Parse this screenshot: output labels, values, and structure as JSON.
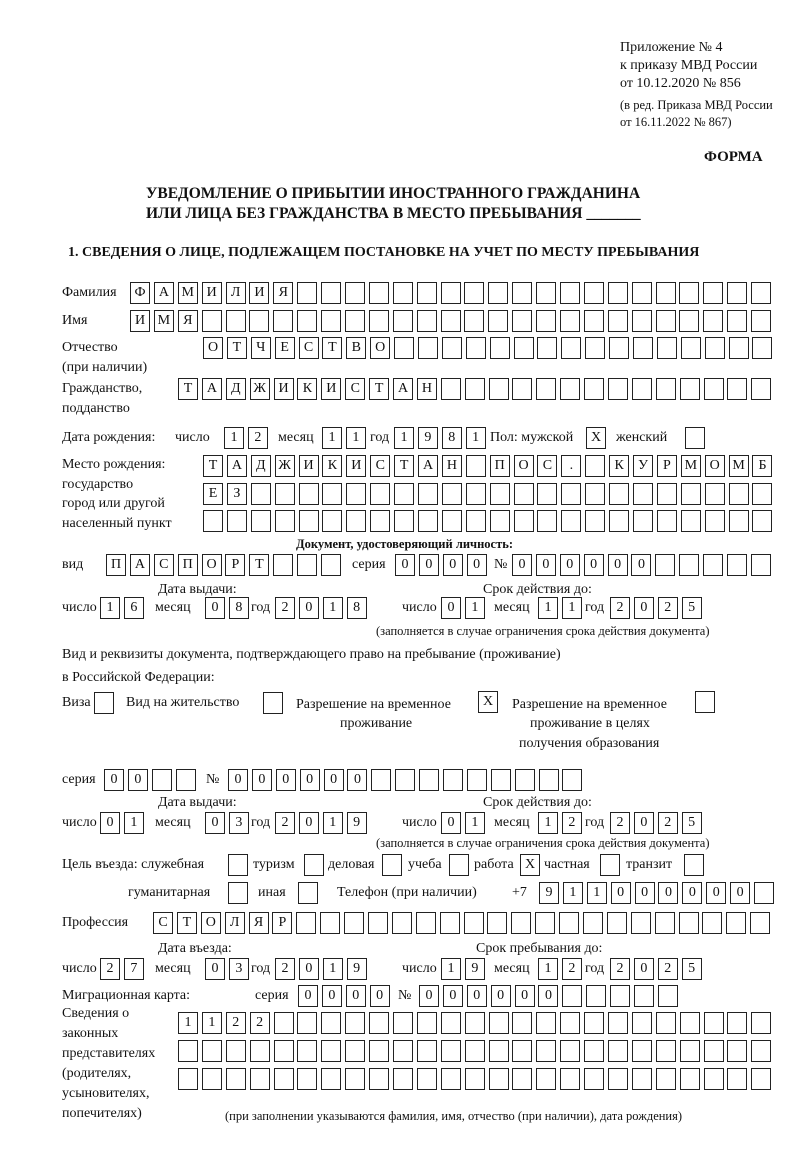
{
  "header": {
    "line1": "Приложение № 4",
    "line2": "к приказу МВД России",
    "line3": "от 10.12.2020 № 856",
    "line4": "(в ред. Приказа МВД России",
    "line5": "от 16.11.2022 № 867)",
    "forma": "ФОРМА"
  },
  "title": {
    "line1": "УВЕДОМЛЕНИЕ О ПРИБЫТИИ ИНОСТРАННОГО ГРАЖДАНИНА",
    "line2": "ИЛИ ЛИЦА БЕЗ ГРАЖДАНСТВА В МЕСТО ПРЕБЫВАНИЯ _______"
  },
  "section1": "1. СВЕДЕНИЯ О ЛИЦЕ, ПОДЛЕЖАЩЕМ ПОСТАНОВКЕ НА УЧЕТ ПО МЕСТУ ПРЕБЫВАНИЯ",
  "labels": {
    "surname": "Фамилия",
    "name": "Имя",
    "patronymic1": "Отчество",
    "patronymic2": "(при наличии)",
    "citizenship1": "Гражданство,",
    "citizenship2": "подданство",
    "birth_date": "Дата рождения:",
    "day": "число",
    "month": "месяц",
    "year": "год",
    "sex_male": "Пол: мужской",
    "sex_female": "женский",
    "birthplace1": "Место рождения:",
    "birthplace2": "государство",
    "birthplace3": "город или другой",
    "birthplace4": "населенный пункт",
    "id_doc": "Документ, удостоверяющий личность:",
    "kind": "вид",
    "series": "серия",
    "number": "№",
    "issue_date": "Дата выдачи:",
    "valid_until": "Срок действия до:",
    "validity_note": "(заполняется в случае ограничения срока действия документа)",
    "right_doc1": "Вид и реквизиты документа, подтверждающего право на пребывание (проживание)",
    "right_doc2": "в Российской Федерации:",
    "visa": "Виза",
    "residence": "Вид на жительство",
    "temp_res1": "Разрешение на временное",
    "temp_res2": "проживание",
    "temp_edu1": "Разрешение на временное",
    "temp_edu2": "проживание в целях",
    "temp_edu3": "получения образования",
    "purpose": "Цель въезда: служебная",
    "tourism": "туризм",
    "business": "деловая",
    "study": "учеба",
    "work": "работа",
    "private": "частная",
    "transit": "транзит",
    "humanitarian": "гуманитарная",
    "other": "иная",
    "phone": "Телефон (при наличии)",
    "phone_prefix": "+7",
    "profession": "Профессия",
    "entry_date": "Дата въезда:",
    "stay_until": "Срок пребывания до:",
    "migration_card": "Миграционная карта:",
    "reps1": "Сведения о",
    "reps2": "законных",
    "reps3": "представителях",
    "reps4": "(родителях,",
    "reps5": "усыновителях,",
    "reps6": "попечителях)",
    "reps_note": "(при заполнении указываются фамилия, имя, отчество (при наличии), дата рождения)"
  },
  "fields": {
    "surname": [
      "Ф",
      "А",
      "М",
      "И",
      "Л",
      "И",
      "Я",
      "",
      "",
      "",
      "",
      "",
      "",
      "",
      "",
      "",
      "",
      "",
      "",
      "",
      "",
      "",
      "",
      "",
      "",
      "",
      ""
    ],
    "name": [
      "И",
      "М",
      "Я",
      "",
      "",
      "",
      "",
      "",
      "",
      "",
      "",
      "",
      "",
      "",
      "",
      "",
      "",
      "",
      "",
      "",
      "",
      "",
      "",
      "",
      "",
      "",
      ""
    ],
    "patronymic": [
      "О",
      "Т",
      "Ч",
      "Е",
      "С",
      "Т",
      "В",
      "О",
      "",
      "",
      "",
      "",
      "",
      "",
      "",
      "",
      "",
      "",
      "",
      "",
      "",
      "",
      "",
      ""
    ],
    "citizenship": [
      "Т",
      "А",
      "Д",
      "Ж",
      "И",
      "К",
      "И",
      "С",
      "Т",
      "А",
      "Н",
      "",
      "",
      "",
      "",
      "",
      "",
      "",
      "",
      "",
      "",
      "",
      "",
      "",
      ""
    ],
    "birth_day": [
      "1",
      "2"
    ],
    "birth_month": [
      "1",
      "1"
    ],
    "birth_year": [
      "1",
      "9",
      "8",
      "1"
    ],
    "sex_male": [
      "X"
    ],
    "sex_female": [
      ""
    ],
    "birthplace_row1": [
      "Т",
      "А",
      "Д",
      "Ж",
      "И",
      "К",
      "И",
      "С",
      "Т",
      "А",
      "Н",
      "",
      "П",
      "О",
      "С",
      ".",
      "",
      "К",
      "У",
      "Р",
      "М",
      "О",
      "М",
      "Б"
    ],
    "birthplace_row2": [
      "Е",
      "З",
      "",
      "",
      "",
      "",
      "",
      "",
      "",
      "",
      "",
      "",
      "",
      "",
      "",
      "",
      "",
      "",
      "",
      "",
      "",
      "",
      "",
      ""
    ],
    "birthplace_row3": [
      "",
      "",
      "",
      "",
      "",
      "",
      "",
      "",
      "",
      "",
      "",
      "",
      "",
      "",
      "",
      "",
      "",
      "",
      "",
      "",
      "",
      "",
      "",
      ""
    ],
    "doc_kind": [
      "П",
      "А",
      "С",
      "П",
      "О",
      "Р",
      "Т",
      "",
      "",
      ""
    ],
    "doc_series": [
      "0",
      "0",
      "0",
      "0"
    ],
    "doc_number": [
      "0",
      "0",
      "0",
      "0",
      "0",
      "0",
      "",
      "",
      "",
      "",
      ""
    ],
    "doc_issue_day": [
      "1",
      "6"
    ],
    "doc_issue_month": [
      "0",
      "8"
    ],
    "doc_issue_year": [
      "2",
      "0",
      "1",
      "8"
    ],
    "doc_valid_day": [
      "0",
      "1"
    ],
    "doc_valid_month": [
      "1",
      "1"
    ],
    "doc_valid_year": [
      "2",
      "0",
      "2",
      "5"
    ],
    "visa": [
      ""
    ],
    "residence": [
      ""
    ],
    "temp_res": [
      "X"
    ],
    "temp_edu": [
      ""
    ],
    "right_series": [
      "0",
      "0",
      "",
      ""
    ],
    "right_number": [
      "0",
      "0",
      "0",
      "0",
      "0",
      "0",
      "",
      "",
      "",
      "",
      "",
      "",
      "",
      "",
      ""
    ],
    "right_issue_day": [
      "0",
      "1"
    ],
    "right_issue_month": [
      "0",
      "3"
    ],
    "right_issue_year": [
      "2",
      "0",
      "1",
      "9"
    ],
    "right_valid_day": [
      "0",
      "1"
    ],
    "right_valid_month": [
      "1",
      "2"
    ],
    "right_valid_year": [
      "2",
      "0",
      "2",
      "5"
    ],
    "p_service": [
      ""
    ],
    "p_tourism": [
      ""
    ],
    "p_business": [
      ""
    ],
    "p_study": [
      ""
    ],
    "p_work": [
      "X"
    ],
    "p_private": [
      ""
    ],
    "p_transit": [
      ""
    ],
    "p_humanitarian": [
      ""
    ],
    "p_other": [
      ""
    ],
    "phone": [
      "9",
      "1",
      "1",
      "0",
      "0",
      "0",
      "0",
      "0",
      "0",
      ""
    ],
    "profession": [
      "С",
      "Т",
      "О",
      "Л",
      "Я",
      "Р",
      "",
      "",
      "",
      "",
      "",
      "",
      "",
      "",
      "",
      "",
      "",
      "",
      "",
      "",
      "",
      "",
      "",
      "",
      "",
      ""
    ],
    "entry_day": [
      "2",
      "7"
    ],
    "entry_month": [
      "0",
      "3"
    ],
    "entry_year": [
      "2",
      "0",
      "1",
      "9"
    ],
    "stay_day": [
      "1",
      "9"
    ],
    "stay_month": [
      "1",
      "2"
    ],
    "stay_year": [
      "2",
      "0",
      "2",
      "5"
    ],
    "mc_series": [
      "0",
      "0",
      "0",
      "0"
    ],
    "mc_number": [
      "0",
      "0",
      "0",
      "0",
      "0",
      "0",
      "",
      "",
      "",
      "",
      ""
    ],
    "reps_row1": [
      "1",
      "1",
      "2",
      "2",
      "",
      "",
      "",
      "",
      "",
      "",
      "",
      "",
      "",
      "",
      "",
      "",
      "",
      "",
      "",
      "",
      "",
      "",
      "",
      "",
      ""
    ],
    "reps_row2": [
      "",
      "",
      "",
      "",
      "",
      "",
      "",
      "",
      "",
      "",
      "",
      "",
      "",
      "",
      "",
      "",
      "",
      "",
      "",
      "",
      "",
      "",
      "",
      "",
      ""
    ],
    "reps_row3": [
      "",
      "",
      "",
      "",
      "",
      "",
      "",
      "",
      "",
      "",
      "",
      "",
      "",
      "",
      "",
      "",
      "",
      "",
      "",
      "",
      "",
      "",
      "",
      "",
      ""
    ]
  }
}
